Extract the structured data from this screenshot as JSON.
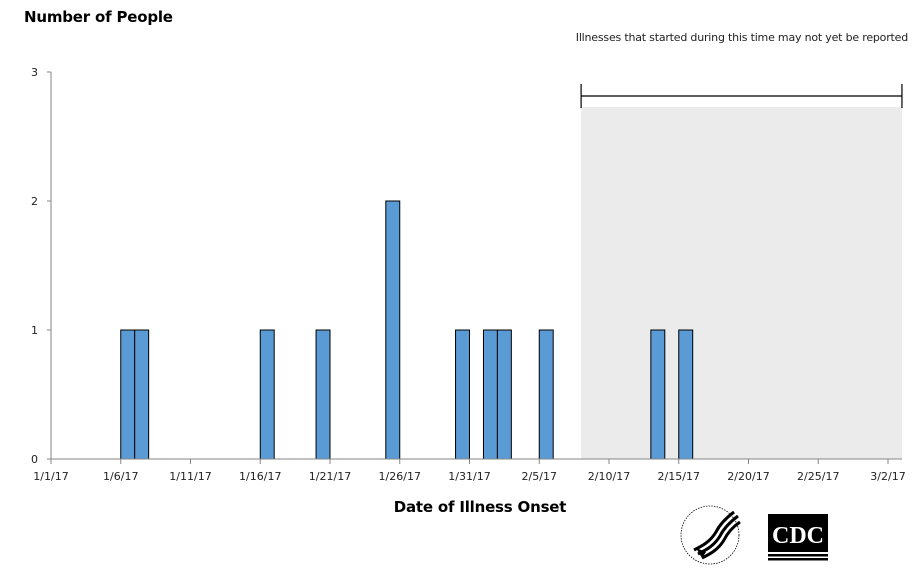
{
  "chart_data": {
    "type": "bar",
    "title": "",
    "ylabel": "Number of People",
    "xlabel": "Date of Illness Onset",
    "ylim": [
      0,
      3
    ],
    "yticks": [
      0,
      1,
      2,
      3
    ],
    "x_tick_labels": [
      "1/1/17",
      "1/6/17",
      "1/11/17",
      "1/16/17",
      "1/21/17",
      "1/26/17",
      "1/31/17",
      "2/5/17",
      "2/10/17",
      "2/15/17",
      "2/20/17",
      "2/25/17",
      "3/2/17"
    ],
    "grid": false,
    "legend": null,
    "categories": [
      "1/6/17",
      "1/7/17",
      "1/16/17",
      "1/20/17",
      "1/25/17",
      "1/30/17",
      "2/1/17",
      "2/2/17",
      "2/5/17",
      "2/13/17",
      "2/15/17"
    ],
    "values": [
      1,
      1,
      1,
      1,
      2,
      1,
      1,
      1,
      1,
      1,
      1
    ],
    "day_index": [
      5,
      6,
      15,
      19,
      24,
      29,
      31,
      32,
      35,
      43,
      45
    ],
    "annotation": {
      "text": "Illnesses that started during this time may not yet be reported",
      "shaded_range_start": "2/8/17",
      "shaded_range_end": "3/2/17",
      "shade_color": "#ebebeb"
    },
    "bar_color": "#5b9bd5",
    "bar_edge_color": "#000000"
  },
  "labels": {
    "y_axis_title": "Number of People",
    "x_axis_title": "Date of Illness Onset",
    "annotation": "Illnesses that started during this time may not yet be reported"
  },
  "logos": {
    "hhs": "hhs-eagle-logo",
    "cdc": "CDC"
  }
}
